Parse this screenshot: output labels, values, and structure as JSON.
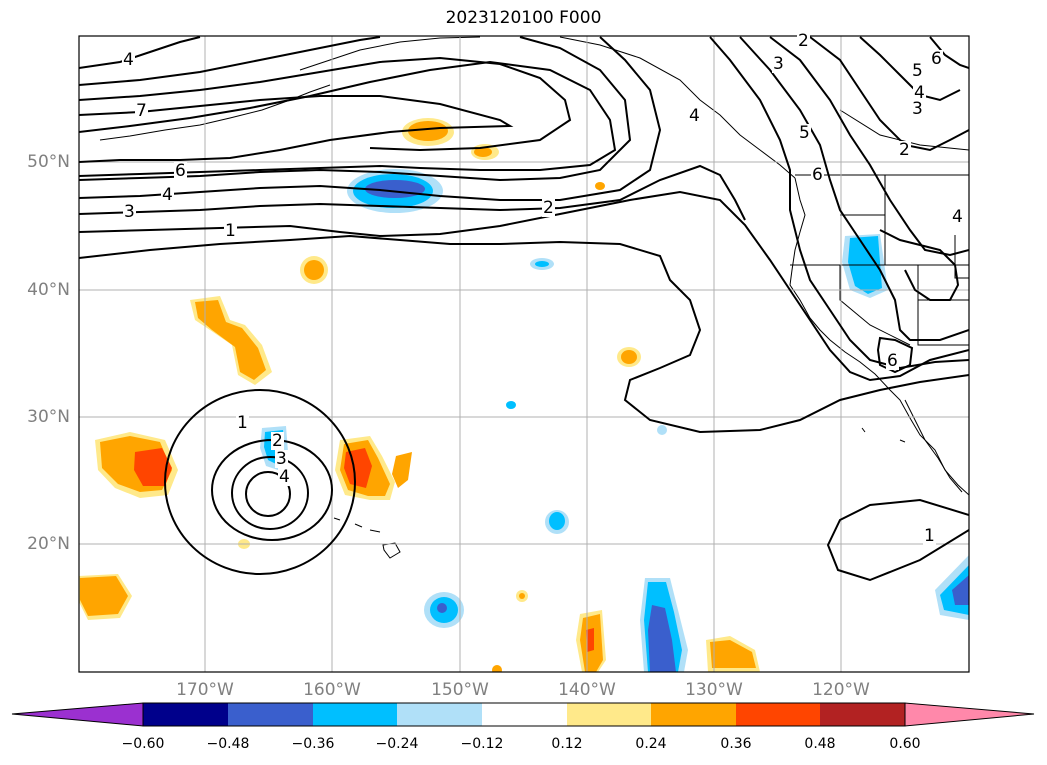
{
  "title": "2023120100 F000",
  "map": {
    "lat_labels": [
      "50°N",
      "40°N",
      "30°N",
      "20°N"
    ],
    "lon_labels": [
      "170°W",
      "160°W",
      "150°W",
      "140°W",
      "130°W",
      "120°W"
    ],
    "contour_labels": [
      "4",
      "7",
      "6",
      "4",
      "3",
      "1",
      "2",
      "1",
      "2",
      "3",
      "4",
      "2",
      "3",
      "4",
      "5",
      "6",
      "5",
      "4",
      "3",
      "6",
      "2",
      "4",
      "6",
      "1"
    ]
  },
  "colorbar": {
    "ticks": [
      "−0.60",
      "−0.48",
      "−0.36",
      "−0.24",
      "−0.12",
      "0.12",
      "0.24",
      "0.36",
      "0.48",
      "0.60"
    ],
    "colors": [
      "#9b30d0",
      "#00008b",
      "#3a5fcd",
      "#00bfff",
      "#b0e0f8",
      "#ffffff",
      "#ffe98a",
      "#ffa500",
      "#ff4500",
      "#b22222",
      "#ff88aa"
    ]
  },
  "palette": {
    "pos1": "#ffe98a",
    "pos2": "#ffa500",
    "pos3": "#ff4500",
    "pos4": "#b22222",
    "neg1": "#b0e0f8",
    "neg2": "#00bfff",
    "neg3": "#3a5fcd",
    "neg4": "#00008b"
  }
}
